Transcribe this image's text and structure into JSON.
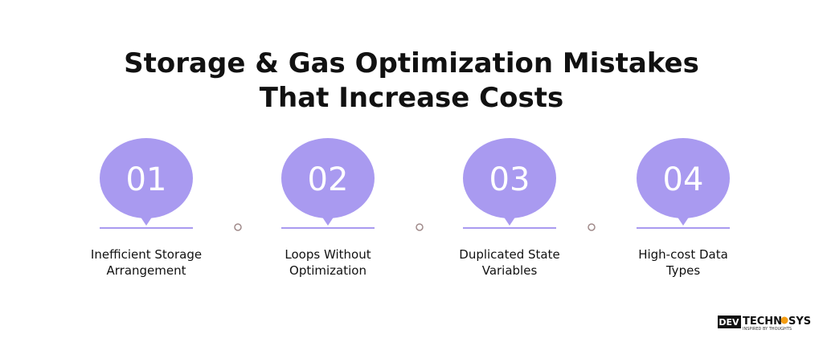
{
  "header": {
    "title_line1": "Storage & Gas Optimization Mistakes",
    "title_line2": "That Increase Costs"
  },
  "steps": [
    {
      "number": "01",
      "label_line1": "Inefficient Storage",
      "label_line2": "Arrangement"
    },
    {
      "number": "02",
      "label_line1": "Loops Without",
      "label_line2": "Optimization"
    },
    {
      "number": "03",
      "label_line1": "Duplicated State",
      "label_line2": "Variables"
    },
    {
      "number": "04",
      "label_line1": "High-cost Data",
      "label_line2": "Types"
    }
  ],
  "logo": {
    "brand_a": "DEV",
    "brand_b": "TECHN",
    "brand_c": "SYS",
    "tagline": "INSPIRED BY THOUGHTS"
  }
}
